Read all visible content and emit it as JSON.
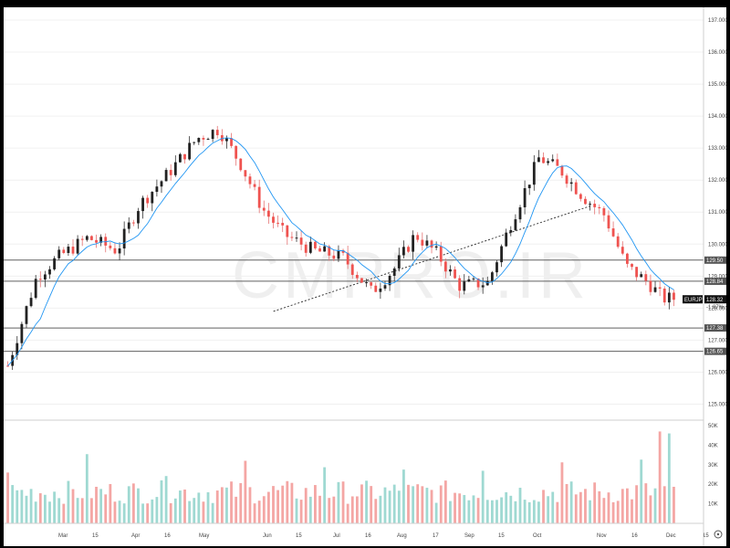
{
  "chart_data": [
    {
      "type": "candlestick",
      "symbol_badge": "EURJPY",
      "last_price_label": "128.32",
      "change_label": "-1.87%",
      "watermark": "CMPRO.IR",
      "ylim": [
        124.5,
        137.4
      ],
      "y_ticks": [
        "137.000",
        "136.000",
        "135.000",
        "134.000",
        "133.000",
        "132.000",
        "131.000",
        "130.000",
        "129.000",
        "128.000",
        "127.000",
        "126.000",
        "125.000"
      ],
      "x_ticks": [
        "Mar",
        "15",
        "Apr",
        "16",
        "May",
        "Jun",
        "15",
        "Jul",
        "16",
        "Aug",
        "17",
        "Sep",
        "15",
        "Oct",
        "Nov",
        "16",
        "Dec",
        "15"
      ],
      "horizontal_levels": [
        {
          "value": 129.5,
          "label": "129.50"
        },
        {
          "value": 128.84,
          "label": "128.84"
        },
        {
          "value": 127.38,
          "label": "127.38"
        },
        {
          "value": 126.65,
          "label": "126.65"
        }
      ],
      "trendline": {
        "style": "dotted",
        "start": {
          "bar": 183,
          "price": 127.9
        },
        "end": {
          "bar": 400,
          "price": 131.2
        }
      },
      "moving_average": {
        "color": "#2196f3"
      },
      "candles": [],
      "colors": {
        "up": "#26a69a",
        "down": "#ef5350",
        "candle_body": "#222222",
        "badge": "#555555",
        "grid": "#f0f0f0",
        "hline": "#606060"
      }
    },
    {
      "type": "bar",
      "name": "Volume",
      "ylim": [
        0,
        50
      ],
      "y_ticks": [
        "50K",
        "40K",
        "30K",
        "20K",
        "10K"
      ],
      "values": []
    }
  ]
}
